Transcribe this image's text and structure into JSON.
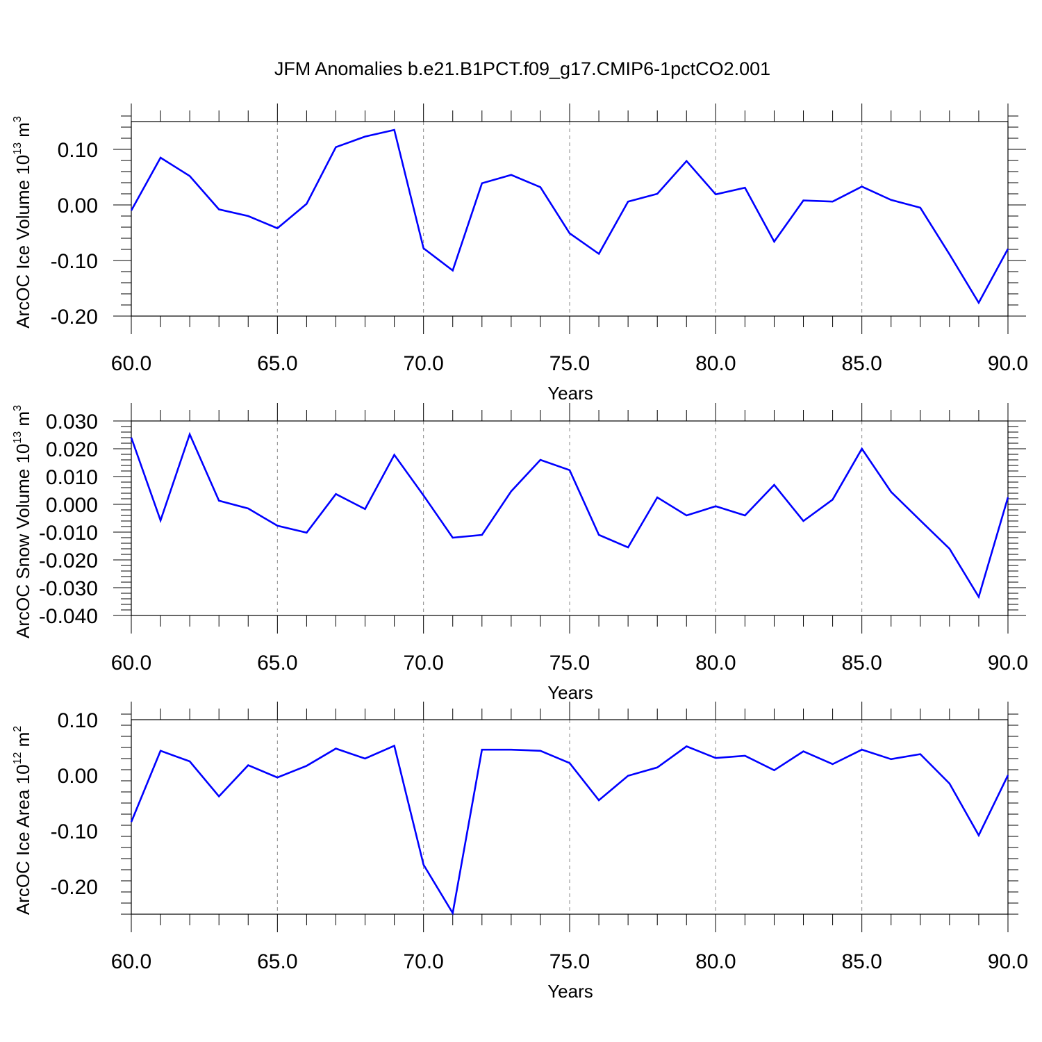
{
  "figure_title": "JFM Anomalies b.e21.B1PCT.f09_g17.CMIP6-1pctCO2.001",
  "chart_data": [
    {
      "type": "line",
      "title": "",
      "xlabel": "Years",
      "ylabel_main": "ArcOC Ice Volume 10",
      "ylabel_exp": "13",
      "ylabel_unit": " m",
      "ylabel_unit_exp": "3",
      "xlim": [
        60,
        90
      ],
      "ylim": [
        -0.2,
        0.15
      ],
      "xticks": [
        60,
        65,
        70,
        75,
        80,
        85,
        90
      ],
      "xtick_labels": [
        "60.0",
        "65.0",
        "70.0",
        "75.0",
        "80.0",
        "85.0",
        "90.0"
      ],
      "yticks": [
        -0.2,
        -0.1,
        0.0,
        0.1
      ],
      "ytick_labels": [
        "-0.20",
        "-0.10",
        "0.00",
        "0.10"
      ],
      "y_minor_step": 0.02,
      "grid": "vertical dashed at major x ticks",
      "color": "#0000ff",
      "x": [
        60,
        61,
        62,
        63,
        64,
        65,
        66,
        67,
        68,
        69,
        70,
        71,
        72,
        73,
        74,
        75,
        76,
        77,
        78,
        79,
        80,
        81,
        82,
        83,
        84,
        85,
        86,
        87,
        88,
        89,
        90
      ],
      "values": [
        -0.01,
        0.085,
        0.052,
        -0.008,
        -0.02,
        -0.042,
        0.002,
        0.104,
        0.123,
        0.135,
        -0.078,
        -0.118,
        0.039,
        0.054,
        0.032,
        -0.051,
        -0.088,
        0.006,
        0.02,
        0.079,
        0.019,
        0.031,
        -0.066,
        0.008,
        0.006,
        0.033,
        0.009,
        -0.005,
        -0.089,
        -0.176,
        -0.079
      ]
    },
    {
      "type": "line",
      "title": "",
      "xlabel": "Years",
      "ylabel_main": "ArcOC Snow Volume 10",
      "ylabel_exp": "13",
      "ylabel_unit": " m",
      "ylabel_unit_exp": "3",
      "xlim": [
        60,
        90
      ],
      "ylim": [
        -0.04,
        0.03
      ],
      "xticks": [
        60,
        65,
        70,
        75,
        80,
        85,
        90
      ],
      "xtick_labels": [
        "60.0",
        "65.0",
        "70.0",
        "75.0",
        "80.0",
        "85.0",
        "90.0"
      ],
      "yticks": [
        -0.04,
        -0.03,
        -0.02,
        -0.01,
        0.0,
        0.01,
        0.02,
        0.03
      ],
      "ytick_labels": [
        "-0.040",
        "-0.030",
        "-0.020",
        "-0.010",
        "0.000",
        "0.010",
        "0.020",
        "0.030"
      ],
      "y_minor_step": 0.002,
      "grid": "vertical dashed at major x ticks",
      "color": "#0000ff",
      "x": [
        60,
        61,
        62,
        63,
        64,
        65,
        66,
        67,
        68,
        69,
        70,
        71,
        72,
        73,
        74,
        75,
        76,
        77,
        78,
        79,
        80,
        81,
        82,
        83,
        84,
        85,
        86,
        87,
        88,
        89,
        90
      ],
      "values": [
        0.024,
        -0.0058,
        0.0252,
        0.0013,
        -0.0015,
        -0.0077,
        -0.0102,
        0.0037,
        -0.0017,
        0.0178,
        0.0032,
        -0.012,
        -0.011,
        0.0047,
        0.016,
        0.0123,
        -0.011,
        -0.0155,
        0.0025,
        -0.004,
        -0.0007,
        -0.004,
        0.007,
        -0.006,
        0.0017,
        0.02,
        0.0045,
        -0.0058,
        -0.016,
        -0.0333,
        0.0025
      ]
    },
    {
      "type": "line",
      "title": "",
      "xlabel": "Years",
      "ylabel_main": "ArcOC Ice Area 10",
      "ylabel_exp": "12",
      "ylabel_unit": " m",
      "ylabel_unit_exp": "2",
      "xlim": [
        60,
        90
      ],
      "ylim": [
        -0.25,
        0.1
      ],
      "xticks": [
        60,
        65,
        70,
        75,
        80,
        85,
        90
      ],
      "xtick_labels": [
        "60.0",
        "65.0",
        "70.0",
        "75.0",
        "80.0",
        "85.0",
        "90.0"
      ],
      "yticks": [
        -0.2,
        -0.1,
        0.0,
        0.1
      ],
      "ytick_labels": [
        "-0.20",
        "-0.10",
        "0.00",
        "0.10"
      ],
      "y_minor_step": 0.02,
      "grid": "vertical dashed at major x ticks",
      "color": "#0000ff",
      "x": [
        60,
        61,
        62,
        63,
        64,
        65,
        66,
        67,
        68,
        69,
        70,
        71,
        72,
        73,
        74,
        75,
        76,
        77,
        78,
        79,
        80,
        81,
        82,
        83,
        84,
        85,
        86,
        87,
        88,
        89,
        90
      ],
      "values": [
        -0.084,
        0.044,
        0.025,
        -0.038,
        0.018,
        -0.004,
        0.017,
        0.048,
        0.03,
        0.053,
        -0.161,
        -0.248,
        0.046,
        0.046,
        0.044,
        0.022,
        -0.045,
        -0.001,
        0.014,
        0.052,
        0.031,
        0.035,
        0.009,
        0.043,
        0.02,
        0.046,
        0.029,
        0.038,
        -0.015,
        -0.108,
        0.0
      ]
    }
  ]
}
